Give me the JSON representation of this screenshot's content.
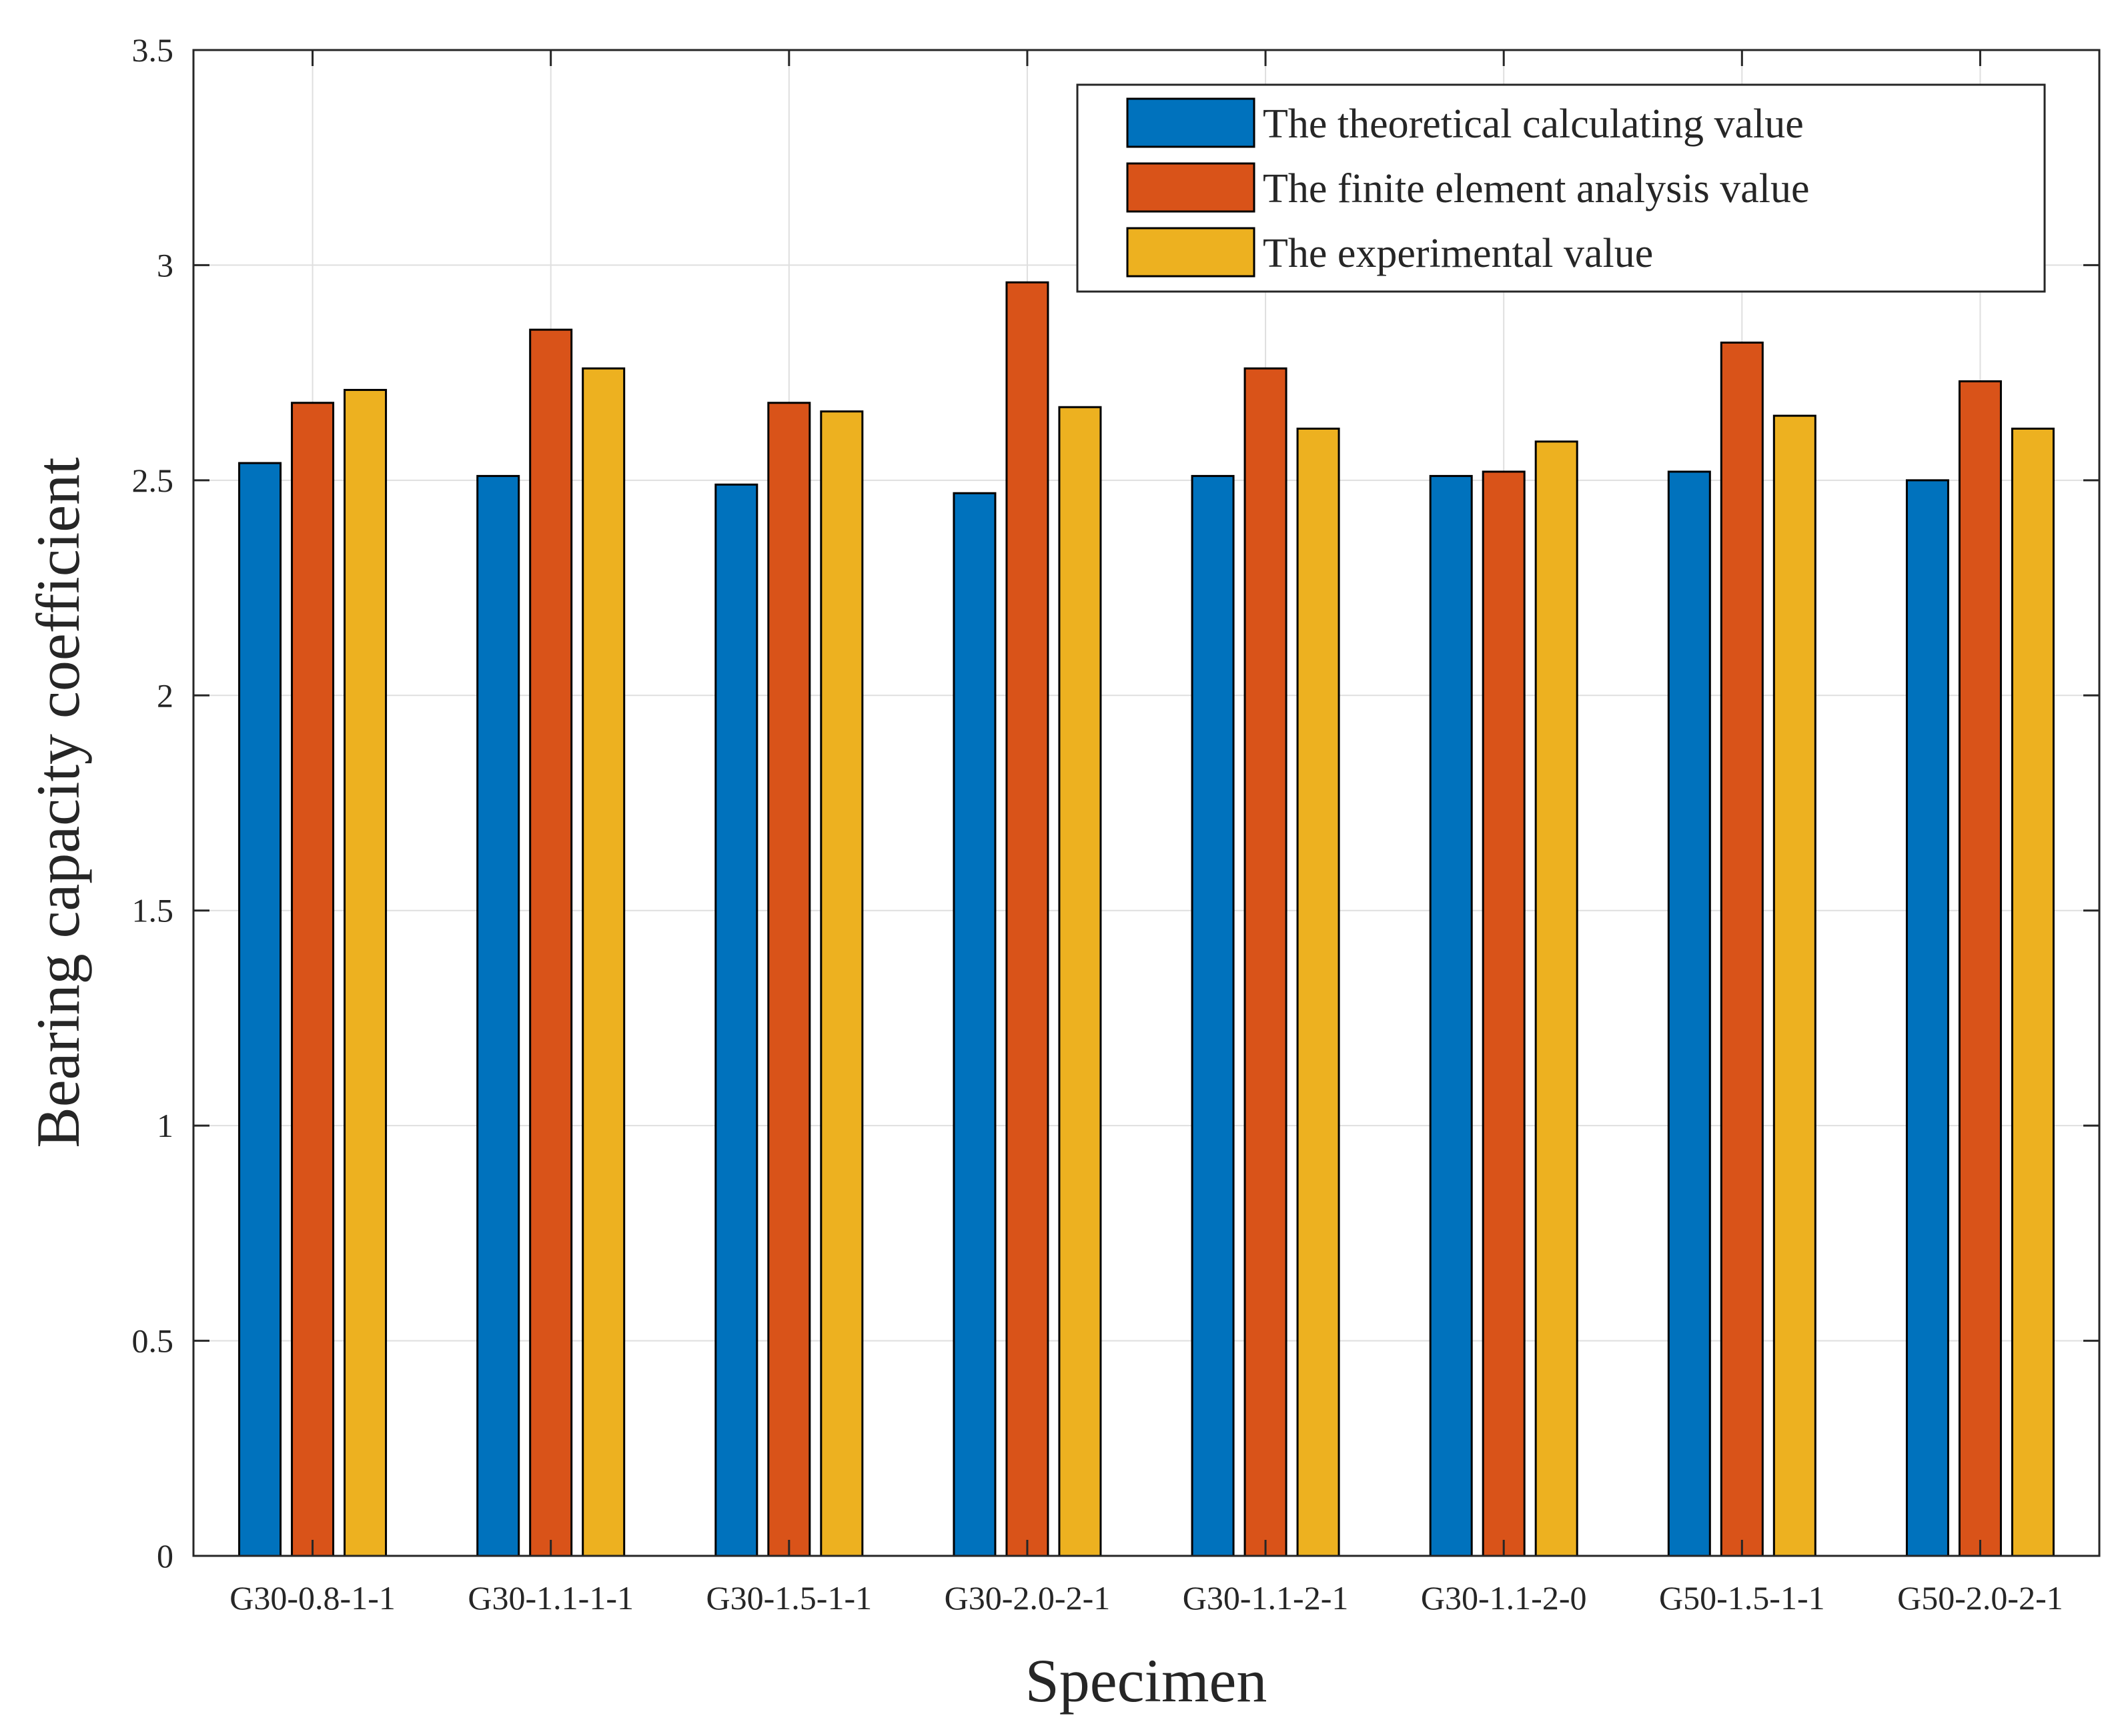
{
  "chart_data": {
    "type": "bar",
    "title": "",
    "xlabel": "Specimen",
    "ylabel": "Bearing capacity coefficient",
    "ylim": [
      0,
      3.5
    ],
    "yticks": [
      "0",
      "0.5",
      "1",
      "1.5",
      "2",
      "2.5",
      "3",
      "3.5"
    ],
    "grid": true,
    "legend_position": "top-right",
    "categories": [
      "G30-0.8-1-1",
      "G30-1.1-1-1",
      "G30-1.5-1-1",
      "G30-2.0-2-1",
      "G30-1.1-2-1",
      "G30-1.1-2-0",
      "G50-1.5-1-1",
      "G50-2.0-2-1"
    ],
    "series": [
      {
        "name": "The theoretical calculating value",
        "color": "#0072BD",
        "values": [
          2.54,
          2.51,
          2.49,
          2.47,
          2.51,
          2.51,
          2.52,
          2.5
        ]
      },
      {
        "name": "The finite element analysis value",
        "color": "#D95319",
        "values": [
          2.68,
          2.85,
          2.68,
          2.96,
          2.76,
          2.52,
          2.82,
          2.73
        ]
      },
      {
        "name": "The experimental value",
        "color": "#EDB120",
        "values": [
          2.71,
          2.76,
          2.66,
          2.67,
          2.62,
          2.59,
          2.65,
          2.62
        ]
      }
    ]
  }
}
